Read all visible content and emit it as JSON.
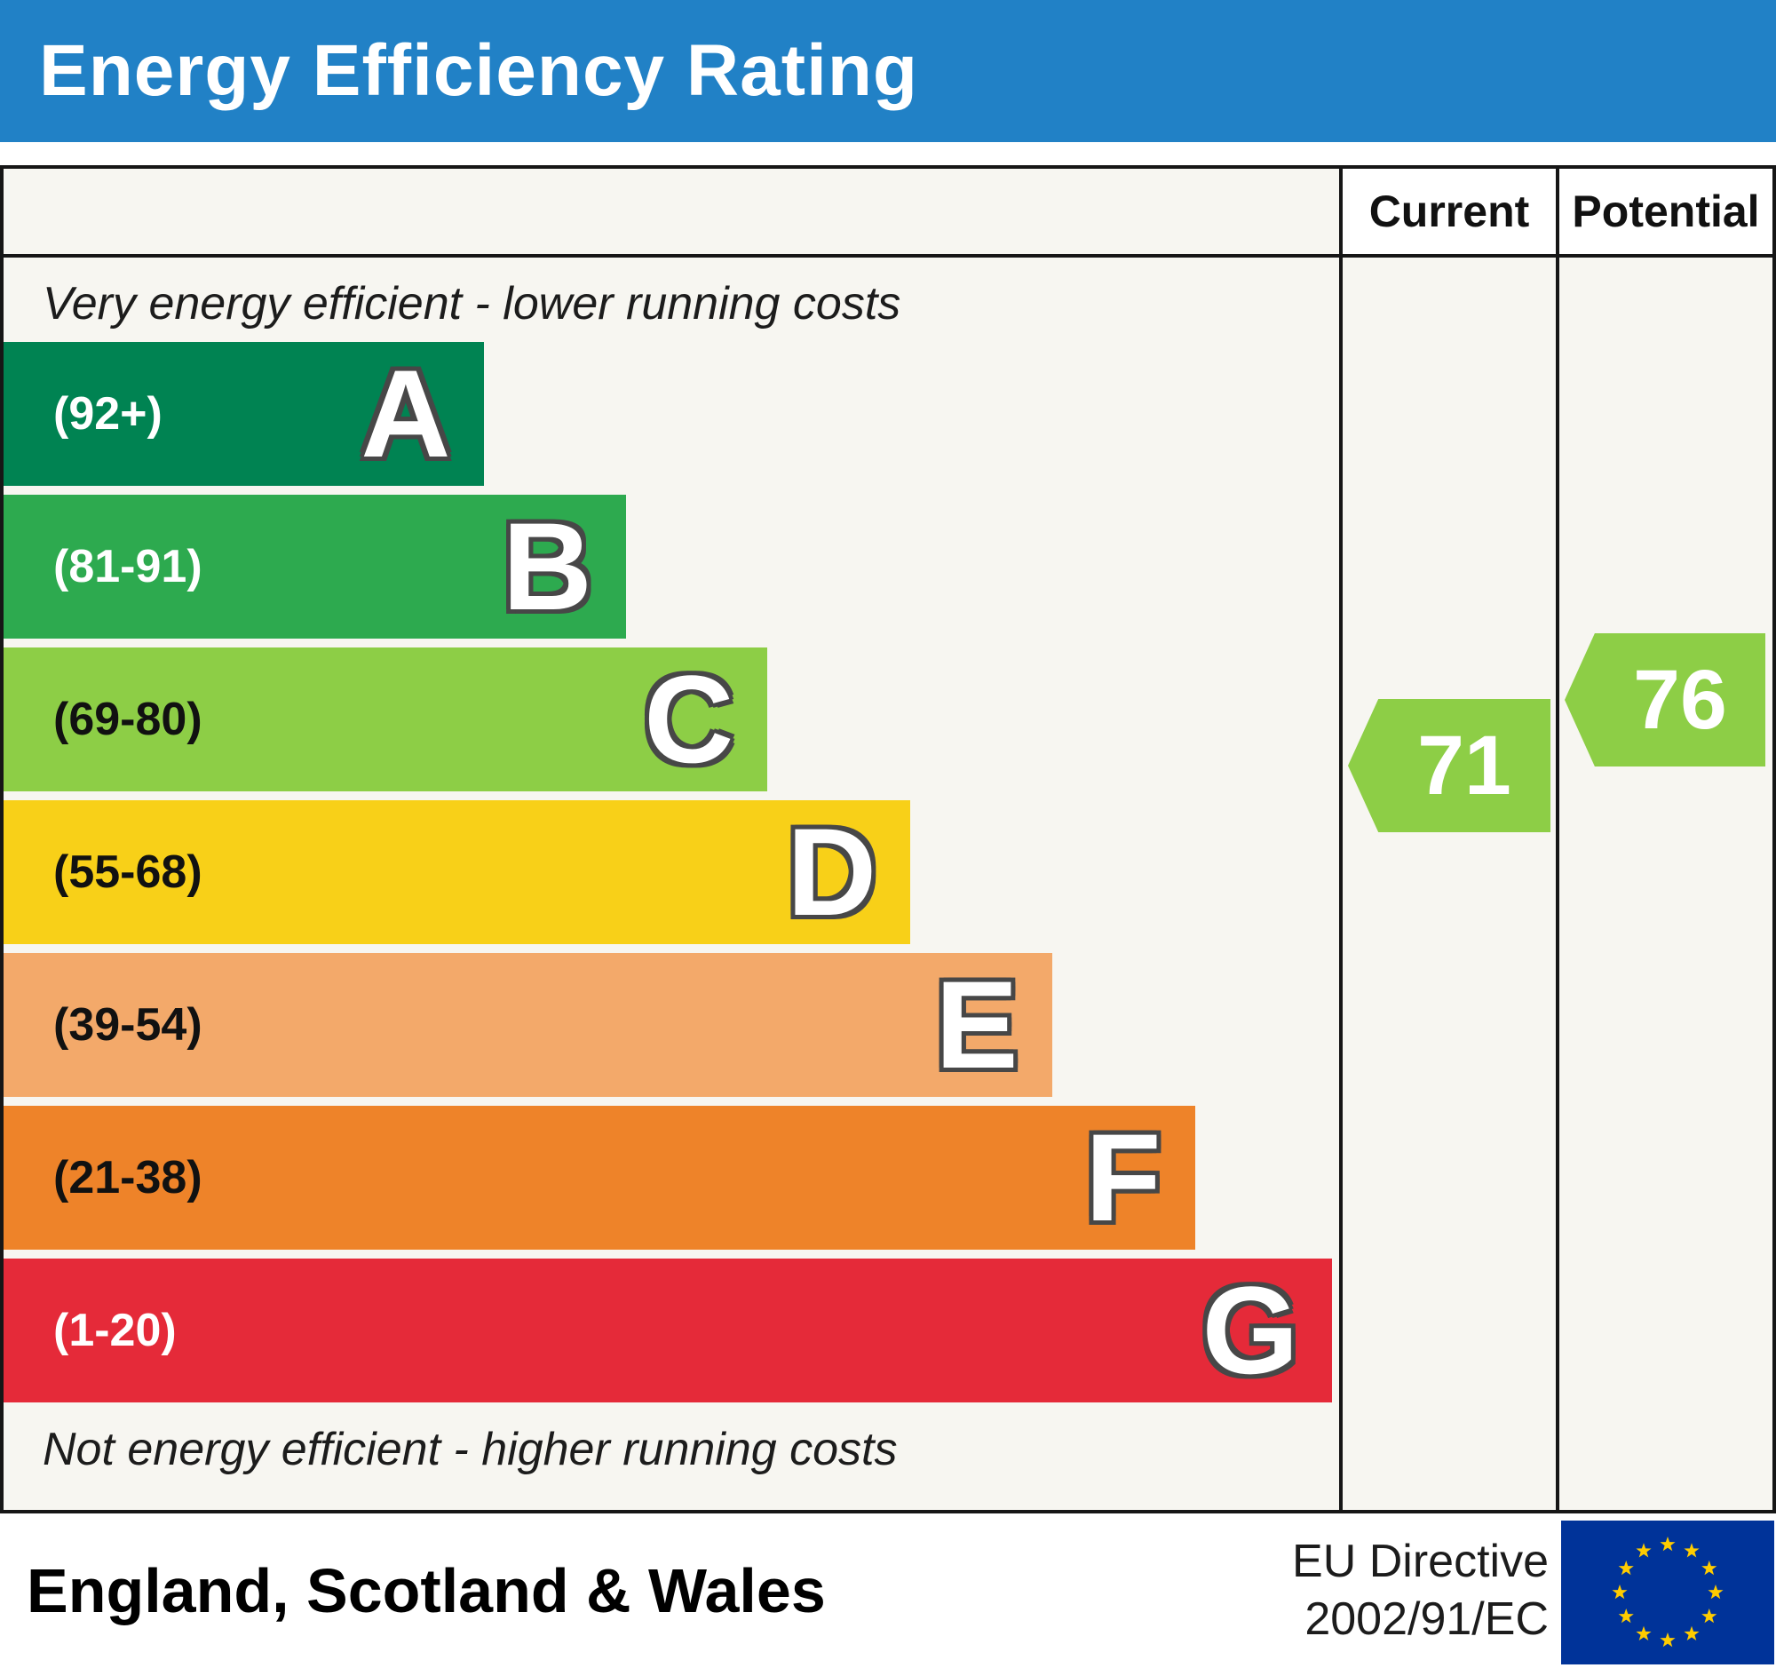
{
  "header": {
    "title": "Energy Efficiency Rating",
    "bg_color": "#2181c6",
    "text_color": "#ffffff"
  },
  "columns": {
    "current": "Current",
    "potential": "Potential"
  },
  "notes": {
    "top": "Very energy efficient - lower running costs",
    "bottom": "Not energy efficient - higher running costs"
  },
  "chart_data": {
    "type": "bar",
    "title": "Energy Efficiency Rating",
    "value_range": [
      1,
      100
    ],
    "bands": [
      {
        "letter": "A",
        "range_label": "(92+)",
        "min": 92,
        "max": 100,
        "color": "#008352",
        "width_pct": 36.0,
        "label_color": "#ffffff"
      },
      {
        "letter": "B",
        "range_label": "(81-91)",
        "min": 81,
        "max": 91,
        "color": "#2daa4f",
        "width_pct": 46.6,
        "label_color": "#ffffff"
      },
      {
        "letter": "C",
        "range_label": "(69-80)",
        "min": 69,
        "max": 80,
        "color": "#8dce46",
        "width_pct": 57.2,
        "label_color": "#111111"
      },
      {
        "letter": "D",
        "range_label": "(55-68)",
        "min": 55,
        "max": 68,
        "color": "#f8d018",
        "width_pct": 67.9,
        "label_color": "#111111"
      },
      {
        "letter": "E",
        "range_label": "(39-54)",
        "min": 39,
        "max": 54,
        "color": "#f3a96a",
        "width_pct": 78.5,
        "label_color": "#111111"
      },
      {
        "letter": "F",
        "range_label": "(21-38)",
        "min": 21,
        "max": 38,
        "color": "#ee8329",
        "width_pct": 89.2,
        "label_color": "#111111"
      },
      {
        "letter": "G",
        "range_label": "(1-20)",
        "min": 1,
        "max": 20,
        "color": "#e52a39",
        "width_pct": 99.5,
        "label_color": "#ffffff"
      }
    ],
    "current": {
      "value": 71,
      "arrow_color": "#8dce46",
      "text_color": "#ffffff"
    },
    "potential": {
      "value": 76,
      "arrow_color": "#8dce46",
      "text_color": "#ffffff"
    }
  },
  "footer": {
    "region": "England, Scotland & Wales",
    "directive_line1": "EU Directive",
    "directive_line2": "2002/91/EC",
    "flag_bg": "#003399",
    "flag_stars": "#ffcc00"
  }
}
